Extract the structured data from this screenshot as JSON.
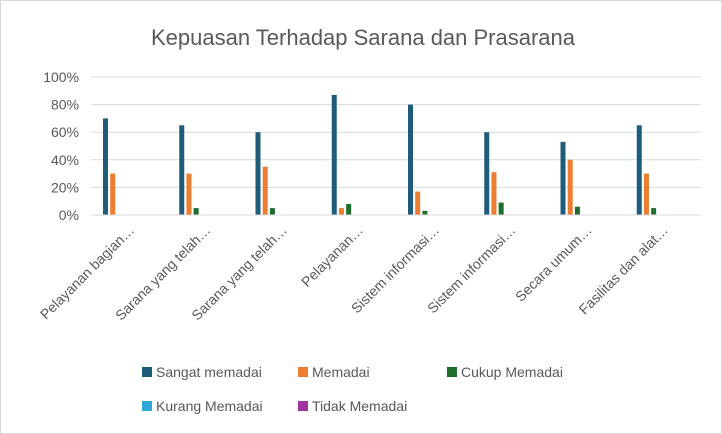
{
  "chart_data": {
    "type": "bar",
    "title": "Kepuasan Terhadap Sarana dan Prasarana",
    "xlabel": "",
    "ylabel": "",
    "ylim": [
      0,
      100
    ],
    "yticks": [
      "0%",
      "20%",
      "40%",
      "60%",
      "80%",
      "100%"
    ],
    "categories": [
      "Pelayanan bagian…",
      "Sarana yang telah…",
      "Sarana yang telah…",
      "Pelayanan…",
      "Sistem informasi…",
      "Sistem informasi…",
      "Secara umum…",
      "Fasilitas dan alat…"
    ],
    "series": [
      {
        "name": "Sangat memadai",
        "color": "#1f5c7a",
        "values": [
          70,
          65,
          60,
          87,
          80,
          60,
          53,
          65
        ]
      },
      {
        "name": "Memadai",
        "color": "#ed7d31",
        "values": [
          30,
          30,
          35,
          5,
          17,
          31,
          40,
          30
        ]
      },
      {
        "name": "Cukup Memadai",
        "color": "#1e6e2e",
        "values": [
          0,
          5,
          5,
          8,
          3,
          9,
          6,
          5
        ]
      },
      {
        "name": "Kurang Memadai",
        "color": "#2ea8d8",
        "values": [
          0,
          0,
          0,
          0,
          0,
          0,
          0,
          0
        ]
      },
      {
        "name": "Tidak Memadai",
        "color": "#a033a0",
        "values": [
          0,
          0,
          0,
          0,
          0,
          0,
          0,
          0
        ]
      }
    ],
    "grid": true,
    "legend_position": "bottom"
  }
}
